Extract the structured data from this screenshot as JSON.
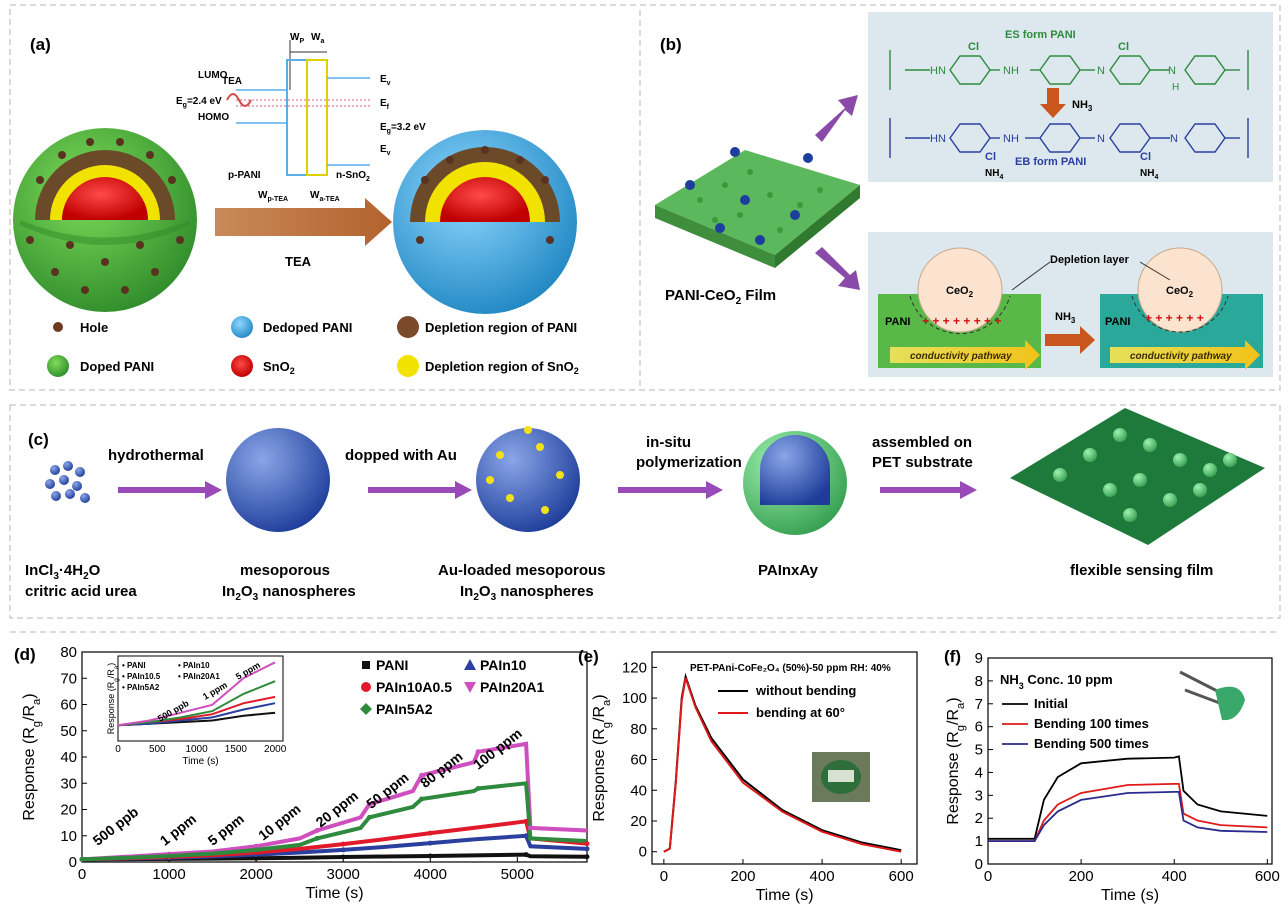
{
  "panel_a": {
    "label": "(a)",
    "band": {
      "wp": "W",
      "wp_sub": "P",
      "wa": "W",
      "wa_sub": "a",
      "lumo": "LUMO",
      "homo": "HOMO",
      "tea": "TEA",
      "eg_left": "E",
      "eg_left_sub": "g",
      "eg_left_val": "=2.4 eV",
      "ev": "E",
      "ev_sub": "v",
      "ef": "E",
      "ef_sub": "f",
      "eg_right": "E",
      "eg_right_sub": "g",
      "eg_right_val": "=3.2 eV",
      "ec": "E",
      "ec_sub": "v",
      "p_pani": "p-PANI",
      "n_sno2": "n-SnO",
      "n_sno2_sub": "2",
      "wp_tea": "W",
      "wp_tea_sub": "p-TEA",
      "wa_tea": "W",
      "wa_tea_sub": "a-TEA"
    },
    "arrow_label": "TEA",
    "legend": {
      "hole": "Hole",
      "dedoped": "Dedoped PANI",
      "depl_pani": "Depletion region of PANI",
      "doped": "Doped PANI",
      "sno2": "SnO",
      "sno2_sub": "2",
      "depl_sno2": "Depletion region of SnO",
      "depl_sno2_sub": "2"
    },
    "colors": {
      "green": "#3fa535",
      "blue": "#2a9fd6",
      "brown": "#7a4a2a",
      "red": "#d81a1a",
      "yellow": "#f2e200"
    }
  },
  "panel_b": {
    "label": "(b)",
    "film": "PANI-CeO",
    "film_sub": "2",
    "film_tail": " Film",
    "es_form": "ES form PANI",
    "eb_form": "EB form PANI",
    "cl": "Cl",
    "nh3": "NH",
    "nh3_sub": "3",
    "nh4": "NH",
    "nh4_sub": "4",
    "hn": "HN",
    "nh": "NH",
    "nh2": "NH",
    "n": "N",
    "h": "H",
    "depletion_layer": "Depletion layer",
    "ceo2": "CeO",
    "ceo2_sub": "2",
    "pani": "PANI",
    "pathway": "conductivity pathway",
    "mid_nh3": "NH",
    "mid_nh3_sub": "3"
  },
  "panel_c": {
    "label": "(c)",
    "steps": [
      "hydrothermal",
      "dopped with Au",
      "in-situ",
      "polymerization",
      "assembled on",
      "PET substrate"
    ],
    "captions": {
      "c1a": "InCl",
      "c1a_sub": "3",
      "c1a_tail": "·4H",
      "c1a_sub2": "2",
      "c1a_tail2": "O",
      "c1b": "critric acid urea",
      "c2a": "mesoporous",
      "c2b": "In",
      "c2b_sub": "2",
      "c2b_tail": "O",
      "c2b_sub2": "3",
      "c2b_tail2": " nanospheres",
      "c3a": "Au-loaded mesoporous",
      "c3b": "In",
      "c3b_sub": "2",
      "c3b_tail": "O",
      "c3b_sub2": "3",
      "c3b_tail2": " nanospheres",
      "c4": "PAInxAy",
      "c5": "flexible sensing film"
    }
  },
  "chart_data": [
    {
      "panel": "(d)",
      "type": "line",
      "xlabel": "Time (s)",
      "ylabel": "Response (R_g/R_a)",
      "xlim": [
        0,
        5800
      ],
      "ylim": [
        0,
        80
      ],
      "xticks": [
        0,
        1000,
        2000,
        3000,
        4000,
        5000
      ],
      "yticks": [
        0,
        10,
        20,
        30,
        40,
        50,
        60,
        70,
        80
      ],
      "annotations": [
        "500 ppb",
        "1 ppm",
        "5 ppm",
        "10 ppm",
        "20 ppm",
        "50 ppm",
        "80 ppm",
        "100 ppm"
      ],
      "annotation_x": [
        180,
        950,
        1500,
        2080,
        2740,
        3320,
        3940,
        4550
      ],
      "annotation_y": [
        6,
        6,
        6,
        8,
        13,
        20,
        28,
        35
      ],
      "legend_position": "top-right",
      "series": [
        {
          "name": "PANI",
          "marker": "square",
          "color": "#111111",
          "x": [
            0,
            500,
            1000,
            1500,
            2000,
            2500,
            3000,
            3500,
            4000,
            4500,
            5100,
            5150,
            5800
          ],
          "y": [
            1,
            1.1,
            1.2,
            1.3,
            1.4,
            1.6,
            1.9,
            2.1,
            2.3,
            2.5,
            2.8,
            2.2,
            2.0
          ]
        },
        {
          "name": "PAIn10",
          "marker": "triangle",
          "color": "#2a3f9e",
          "x": [
            0,
            500,
            1000,
            1500,
            2000,
            2500,
            3000,
            3500,
            4000,
            4500,
            5100,
            5150,
            5800
          ],
          "y": [
            1,
            1.3,
            1.6,
            2.1,
            2.8,
            3.6,
            4.6,
            5.8,
            7.2,
            8.6,
            10,
            6,
            5
          ]
        },
        {
          "name": "PAIn10A0.5",
          "marker": "circle",
          "color": "#e11a2b",
          "x": [
            0,
            500,
            1000,
            1500,
            2000,
            2500,
            3000,
            3500,
            4000,
            4500,
            5100,
            5150,
            5800
          ],
          "y": [
            1,
            1.4,
            1.9,
            2.6,
            3.6,
            5.0,
            6.8,
            8.8,
            11,
            13,
            15.5,
            9,
            7
          ]
        },
        {
          "name": "PAIn20A1",
          "marker": "triangle-down",
          "color": "#d04fbf",
          "x": [
            0,
            500,
            1000,
            1500,
            2000,
            2500,
            2700,
            3200,
            3300,
            3800,
            3900,
            4500,
            4550,
            5100,
            5150,
            5800
          ],
          "y": [
            1,
            2,
            3,
            4,
            6,
            9,
            12,
            17,
            22,
            27,
            33,
            38,
            42,
            45,
            13,
            12
          ]
        },
        {
          "name": "PAIn5A2",
          "marker": "diamond",
          "color": "#2e8a3c",
          "x": [
            0,
            500,
            1000,
            1500,
            2000,
            2500,
            2700,
            3200,
            3300,
            3800,
            3900,
            4500,
            4550,
            5100,
            5150,
            5800
          ],
          "y": [
            1,
            1.6,
            2.3,
            3.2,
            4.6,
            6.5,
            9,
            13,
            17,
            21,
            24,
            27,
            28,
            30,
            9,
            8
          ]
        }
      ],
      "inset": {
        "xlabel": "Time (s)",
        "ylabel": "Response (R_g/R_a)",
        "xticks": [
          0,
          500,
          1000,
          1500,
          2000
        ],
        "xlim": [
          0,
          2100
        ],
        "ylim": [
          0.5,
          3.2
        ],
        "annotations": [
          "500 ppb",
          "1 ppm",
          "5 ppm"
        ],
        "legend": [
          "PANI",
          "PAIn10.5",
          "PAIn5A2",
          "PAIn10",
          "PAIn20A1"
        ]
      }
    },
    {
      "panel": "(e)",
      "type": "line",
      "title": "PET-PAni-CoFe₂O₄ (50%)-50 ppm  RH: 40%",
      "xlabel": "Time (s)",
      "ylabel": "Response (R_g/R_a)",
      "xlim": [
        -30,
        640
      ],
      "ylim": [
        -8,
        130
      ],
      "xticks": [
        0,
        200,
        400,
        600
      ],
      "yticks": [
        0,
        20,
        40,
        60,
        80,
        100,
        120
      ],
      "series": [
        {
          "name": "without bending",
          "color": "#000000",
          "x": [
            0,
            15,
            30,
            45,
            55,
            80,
            120,
            200,
            300,
            400,
            500,
            600
          ],
          "y": [
            0,
            2,
            45,
            100,
            114,
            95,
            74,
            47,
            27,
            14,
            6,
            1
          ]
        },
        {
          "name": "bending at 60°",
          "color": "#e01a1a",
          "x": [
            0,
            15,
            30,
            45,
            55,
            80,
            120,
            200,
            300,
            400,
            500,
            600
          ],
          "y": [
            0,
            2,
            44,
            98,
            113,
            94,
            72,
            45,
            26,
            13,
            5,
            0
          ]
        }
      ]
    },
    {
      "panel": "(f)",
      "type": "line",
      "title": "NH₃ Conc. 10 ppm",
      "xlabel": "Time (s)",
      "ylabel": "Response (R_g/R_a)",
      "xlim": [
        0,
        610
      ],
      "ylim": [
        0,
        9
      ],
      "xticks": [
        0,
        200,
        400,
        600
      ],
      "yticks": [
        0,
        1,
        2,
        3,
        4,
        5,
        6,
        7,
        8,
        9
      ],
      "series": [
        {
          "name": "Initial",
          "color": "#000000",
          "x": [
            0,
            100,
            120,
            150,
            200,
            300,
            400,
            410,
            420,
            450,
            500,
            600
          ],
          "y": [
            1.1,
            1.1,
            2.8,
            3.8,
            4.4,
            4.6,
            4.65,
            4.7,
            3.2,
            2.6,
            2.3,
            2.1
          ]
        },
        {
          "name": "Bending 100 times",
          "color": "#e01a1a",
          "x": [
            0,
            100,
            120,
            150,
            200,
            300,
            400,
            410,
            420,
            450,
            500,
            600
          ],
          "y": [
            1.0,
            1.0,
            1.9,
            2.6,
            3.1,
            3.45,
            3.5,
            3.5,
            2.2,
            1.9,
            1.7,
            1.6
          ]
        },
        {
          "name": "Bending 500 times",
          "color": "#2a2a8e",
          "x": [
            0,
            100,
            120,
            150,
            200,
            300,
            400,
            410,
            420,
            450,
            500,
            600
          ],
          "y": [
            1.0,
            1.0,
            1.7,
            2.3,
            2.8,
            3.1,
            3.15,
            3.15,
            1.9,
            1.6,
            1.45,
            1.4
          ]
        }
      ]
    }
  ]
}
